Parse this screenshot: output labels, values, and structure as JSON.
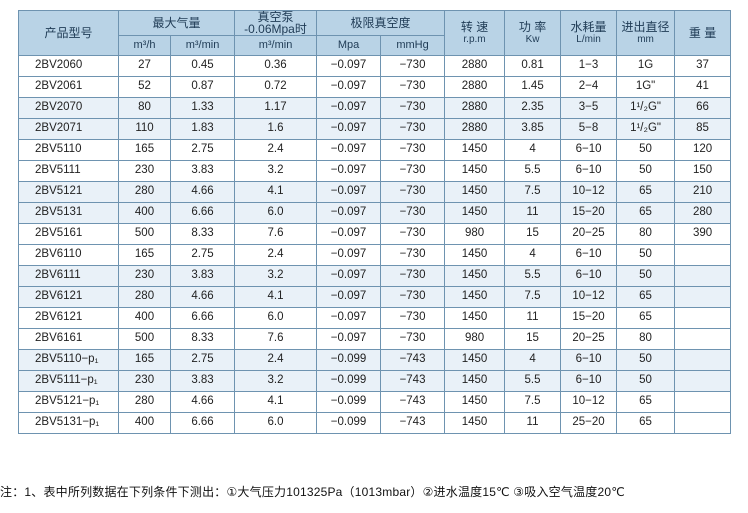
{
  "headers": {
    "model": "产品型号",
    "max_air": "最大气量",
    "vacuum_pump": "真空泵",
    "vacuum_pump_sub": "-0.06Mpa时",
    "limit_vacuum": "极限真空度",
    "speed": "转 速",
    "speed_sub": "r.p.m",
    "power": "功 率",
    "power_sub": "Kw",
    "water": "水耗量",
    "water_sub": "L/min",
    "diameter": "进出直径",
    "diameter_sub": "mm",
    "weight": "重 量",
    "unit_m3h": "m³/h",
    "unit_m3min": "m³/min",
    "unit_m3min_2": "m³/min",
    "unit_mpa": "Mpa",
    "unit_mmhg": "mmHg"
  },
  "rows": [
    [
      "2BV2060",
      "27",
      "0.45",
      "0.36",
      "−0.097",
      "−730",
      "2880",
      "0.81",
      "1−3",
      "1G",
      "37"
    ],
    [
      "2BV2061",
      "52",
      "0.87",
      "0.72",
      "−0.097",
      "−730",
      "2880",
      "1.45",
      "2−4",
      "1G\"",
      "41"
    ],
    [
      "2BV2070",
      "80",
      "1.33",
      "1.17",
      "−0.097",
      "−730",
      "2880",
      "2.35",
      "3−5",
      "1¹/₂G\"",
      "66"
    ],
    [
      "2BV2071",
      "110",
      "1.83",
      "1.6",
      "−0.097",
      "−730",
      "2880",
      "3.85",
      "5−8",
      "1¹/₂G\"",
      "85"
    ],
    [
      "2BV5110",
      "165",
      "2.75",
      "2.4",
      "−0.097",
      "−730",
      "1450",
      "4",
      "6−10",
      "50",
      "120"
    ],
    [
      "2BV5111",
      "230",
      "3.83",
      "3.2",
      "−0.097",
      "−730",
      "1450",
      "5.5",
      "6−10",
      "50",
      "150"
    ],
    [
      "2BV5121",
      "280",
      "4.66",
      "4.1",
      "−0.097",
      "−730",
      "1450",
      "7.5",
      "10−12",
      "65",
      "210"
    ],
    [
      "2BV5131",
      "400",
      "6.66",
      "6.0",
      "−0.097",
      "−730",
      "1450",
      "11",
      "15−20",
      "65",
      "280"
    ],
    [
      "2BV5161",
      "500",
      "8.33",
      "7.6",
      "−0.097",
      "−730",
      "980",
      "15",
      "20−25",
      "80",
      "390"
    ],
    [
      "2BV6110",
      "165",
      "2.75",
      "2.4",
      "−0.097",
      "−730",
      "1450",
      "4",
      "6−10",
      "50",
      ""
    ],
    [
      "2BV6111",
      "230",
      "3.83",
      "3.2",
      "−0.097",
      "−730",
      "1450",
      "5.5",
      "6−10",
      "50",
      ""
    ],
    [
      "2BV6121",
      "280",
      "4.66",
      "4.1",
      "−0.097",
      "−730",
      "1450",
      "7.5",
      "10−12",
      "65",
      ""
    ],
    [
      "2BV6121",
      "400",
      "6.66",
      "6.0",
      "−0.097",
      "−730",
      "1450",
      "11",
      "15−20",
      "65",
      ""
    ],
    [
      "2BV6161",
      "500",
      "8.33",
      "7.6",
      "−0.097",
      "−730",
      "980",
      "15",
      "20−25",
      "80",
      ""
    ],
    [
      "2BV5110−p₁",
      "165",
      "2.75",
      "2.4",
      "−0.099",
      "−743",
      "1450",
      "4",
      "6−10",
      "50",
      ""
    ],
    [
      "2BV5111−p₁",
      "230",
      "3.83",
      "3.2",
      "−0.099",
      "−743",
      "1450",
      "5.5",
      "6−10",
      "50",
      ""
    ],
    [
      "2BV5121−p₁",
      "280",
      "4.66",
      "4.1",
      "−0.099",
      "−743",
      "1450",
      "7.5",
      "10−12",
      "65",
      ""
    ],
    [
      "2BV5131−p₁",
      "400",
      "6.66",
      "6.0",
      "−0.099",
      "−743",
      "1450",
      "11",
      "25−20",
      "65",
      ""
    ]
  ],
  "footnote": "注：1、表中所列数据在下列条件下测出：①大气压力101325Pa（1013mbar）②进水温度15℃ ③吸入空气温度20℃"
}
